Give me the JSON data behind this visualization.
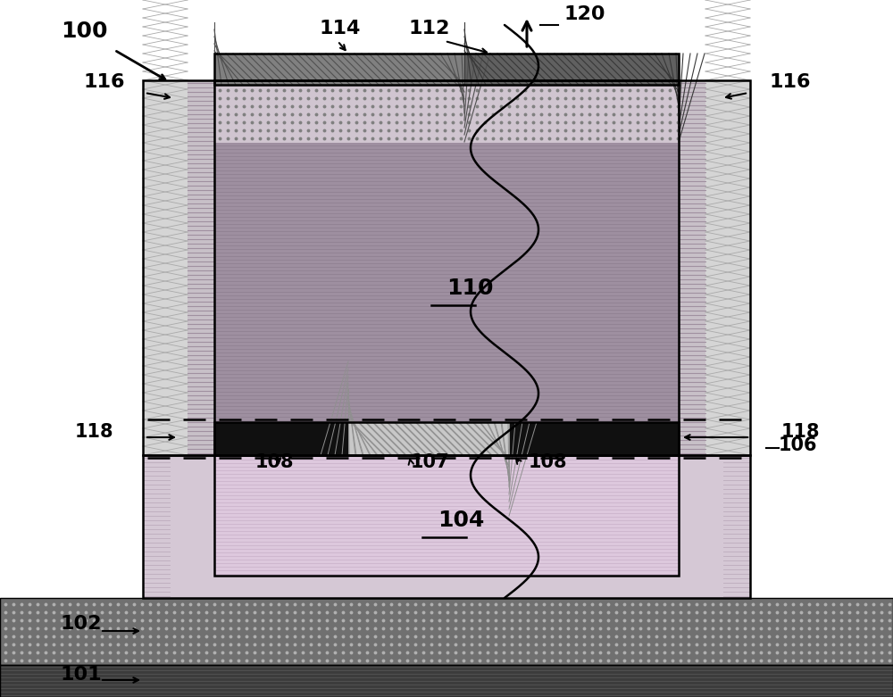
{
  "bg_color": "#ffffff",
  "fig_width": 10.0,
  "fig_height": 7.81,
  "colors": {
    "white": "#ffffff",
    "black": "#000000",
    "layer101": "#3c3c3c",
    "layer102": "#707070",
    "layer102_dot": "#b0b0b0",
    "layer104": "#ddc8dd",
    "layer104_line": "#c8b0c8",
    "layer106": "#101010",
    "layer107": "#c8c8c8",
    "layer107_hatch": "#909090",
    "layer110": "#9e8fa0",
    "layer110_line": "#8e7f90",
    "layer_dot_bg": "#d0c5d0",
    "layer_dot_color": "#808080",
    "layer114_bg": "#808080",
    "layer114_hatch": "#505050",
    "layer112_bg": "#606060",
    "layer112_hatch": "#383838",
    "sidewall_outer_bg": "#d5d5d5",
    "sidewall_outer_hatch": "#aaaaaa",
    "sidewall_inner_bg": "#c8c0c8",
    "sidewall_inner_line": "#a090a0",
    "base_bg": "#d5c8d5",
    "base_line": "#c0b0c0"
  }
}
